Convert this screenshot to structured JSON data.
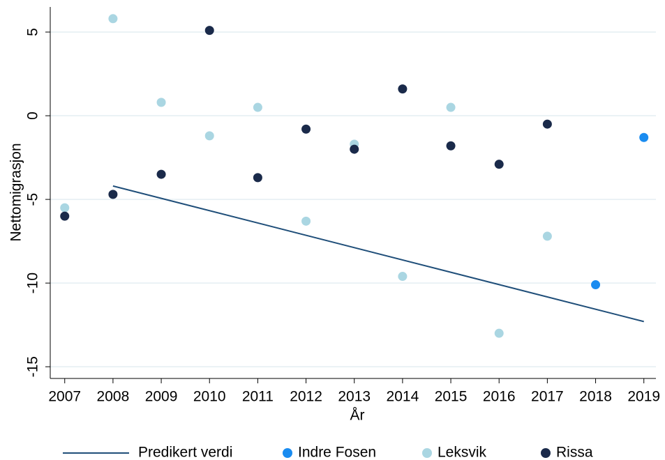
{
  "chart_data": {
    "type": "scatter",
    "x_label": "År",
    "y_label": "Nettomigrasjon",
    "xlim": [
      2006.7,
      2019.25
    ],
    "ylim": [
      -15.7,
      6.5
    ],
    "xticks": [
      2007,
      2008,
      2009,
      2010,
      2011,
      2012,
      2013,
      2014,
      2015,
      2016,
      2017,
      2018,
      2019
    ],
    "yticks": [
      -15,
      -10,
      -5,
      0,
      5
    ],
    "grid": true,
    "legend": "bottom",
    "series": [
      {
        "name": "Predikert verdi",
        "color": "#1f4e79",
        "mode": "line",
        "x": [
          2008,
          2019
        ],
        "values": [
          -4.2,
          -12.3
        ]
      },
      {
        "name": "Indre Fosen",
        "color": "#1a8cf0",
        "mode": "markers",
        "x": [
          2018,
          2019
        ],
        "values": [
          -10.1,
          -1.3
        ]
      },
      {
        "name": "Leksvik",
        "color": "#aad6e2",
        "mode": "markers",
        "x": [
          2007,
          2008,
          2009,
          2010,
          2011,
          2012,
          2013,
          2014,
          2015,
          2016,
          2017
        ],
        "values": [
          -5.5,
          5.8,
          0.8,
          -1.2,
          0.5,
          -6.3,
          -1.7,
          -9.6,
          0.5,
          -13,
          -7.2
        ]
      },
      {
        "name": "Rissa",
        "color": "#1a2a4a",
        "mode": "markers",
        "x": [
          2007,
          2008,
          2009,
          2010,
          2011,
          2012,
          2013,
          2014,
          2015,
          2016,
          2017
        ],
        "values": [
          -6.0,
          -4.7,
          -3.5,
          5.1,
          -3.7,
          -0.8,
          -2.0,
          1.6,
          -1.8,
          -2.9,
          -0.5
        ]
      }
    ]
  }
}
